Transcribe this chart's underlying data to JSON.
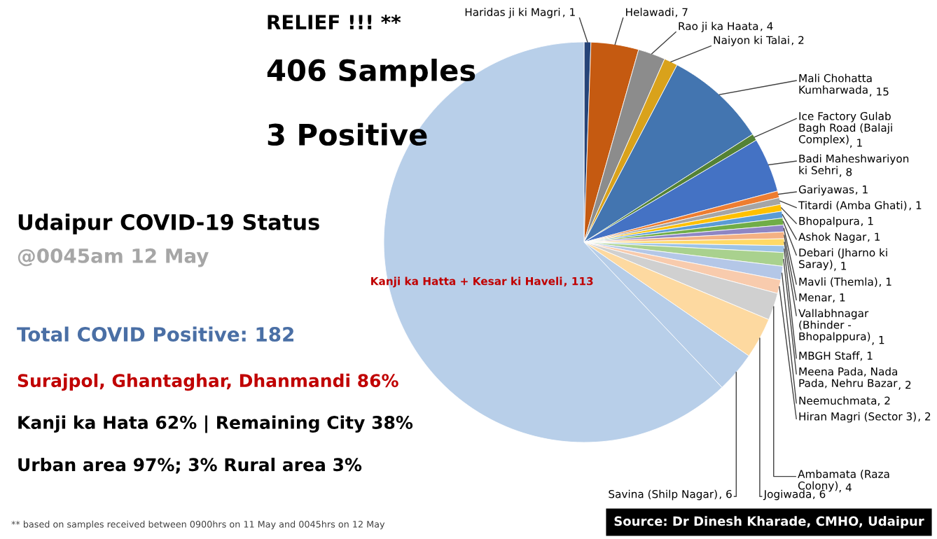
{
  "chart_data": {
    "type": "pie",
    "title": "Udaipur COVID-19 Status",
    "subtitle": "@0045am 12 May",
    "categories": [
      "Haridas ji ki Magri",
      "Helawadi",
      "Rao ji ka Haata",
      "Naiyon ki Talai",
      "Mali Chohatta Kumharwada",
      "Ice Factory Gulab Bagh Road (Balaji Complex)",
      "Badi Maheshwariyon ki Sehri",
      "Gariyawas",
      "Titardi (Amba Ghati)",
      "Bhopalpura",
      "Ashok Nagar",
      "Debari (Jharno ki Saray)",
      "Mavli (Themla)",
      "Menar",
      "Vallabhnagar (Bhinder - Bhopalppura)",
      "MBGH Staff",
      "Meena Pada, Nada Pada, Nehru Bazar",
      "Neemuchmata",
      "Hiran Magri (Sector 3)",
      "Ambamata (Raza Colony)",
      "Jogiwada",
      "Savina (Shilp Nagar)",
      "Kanji ka Hatta + Kesar ki Haveli"
    ],
    "values": [
      1,
      7,
      4,
      2,
      15,
      1,
      8,
      1,
      1,
      1,
      1,
      1,
      1,
      1,
      1,
      1,
      2,
      2,
      2,
      4,
      6,
      6,
      113
    ],
    "colors": [
      "#264478",
      "#c55a11",
      "#8c8c8c",
      "#d9a21b",
      "#4375b0",
      "#548235",
      "#4472c4",
      "#ed7d31",
      "#a5a5a5",
      "#ffc000",
      "#5b9bd5",
      "#70ad47",
      "#8e86c4",
      "#f4b183",
      "#ffd966",
      "#9dc3e6",
      "#a9d18e",
      "#b4c7e7",
      "#f8cbad",
      "#d0d0d0",
      "#fdd9a0",
      "#b6cde8",
      "#b8cfe9"
    ],
    "value_labels": [
      ", 1",
      ", 7",
      ", 4",
      ", 2",
      ", 15",
      ", 1",
      ", 8",
      ", 1",
      ", 1",
      ", 1",
      ", 1",
      ", 1",
      ", 1",
      ", 1",
      ", 1",
      ", 1",
      ", 2",
      ", 2",
      ", 2",
      ", 4",
      ", 6",
      ", 6",
      ", 113"
    ],
    "annotations": [
      "RELIEF !!! **",
      "406 Samples",
      "3 Positive",
      "Total COVID Positive: 182",
      "Surajpol, Ghantaghar, Dhanmandi 86%",
      "Kanji ka Hata 62% | Remaining City 38%",
      "Urban area 97%; 3% Rural area 3%",
      "** based on samples received between 0900hrs on 11 May and 0045hrs on 12 May",
      "Source: Dr Dinesh Kharade, CMHO, Udaipur"
    ]
  }
}
